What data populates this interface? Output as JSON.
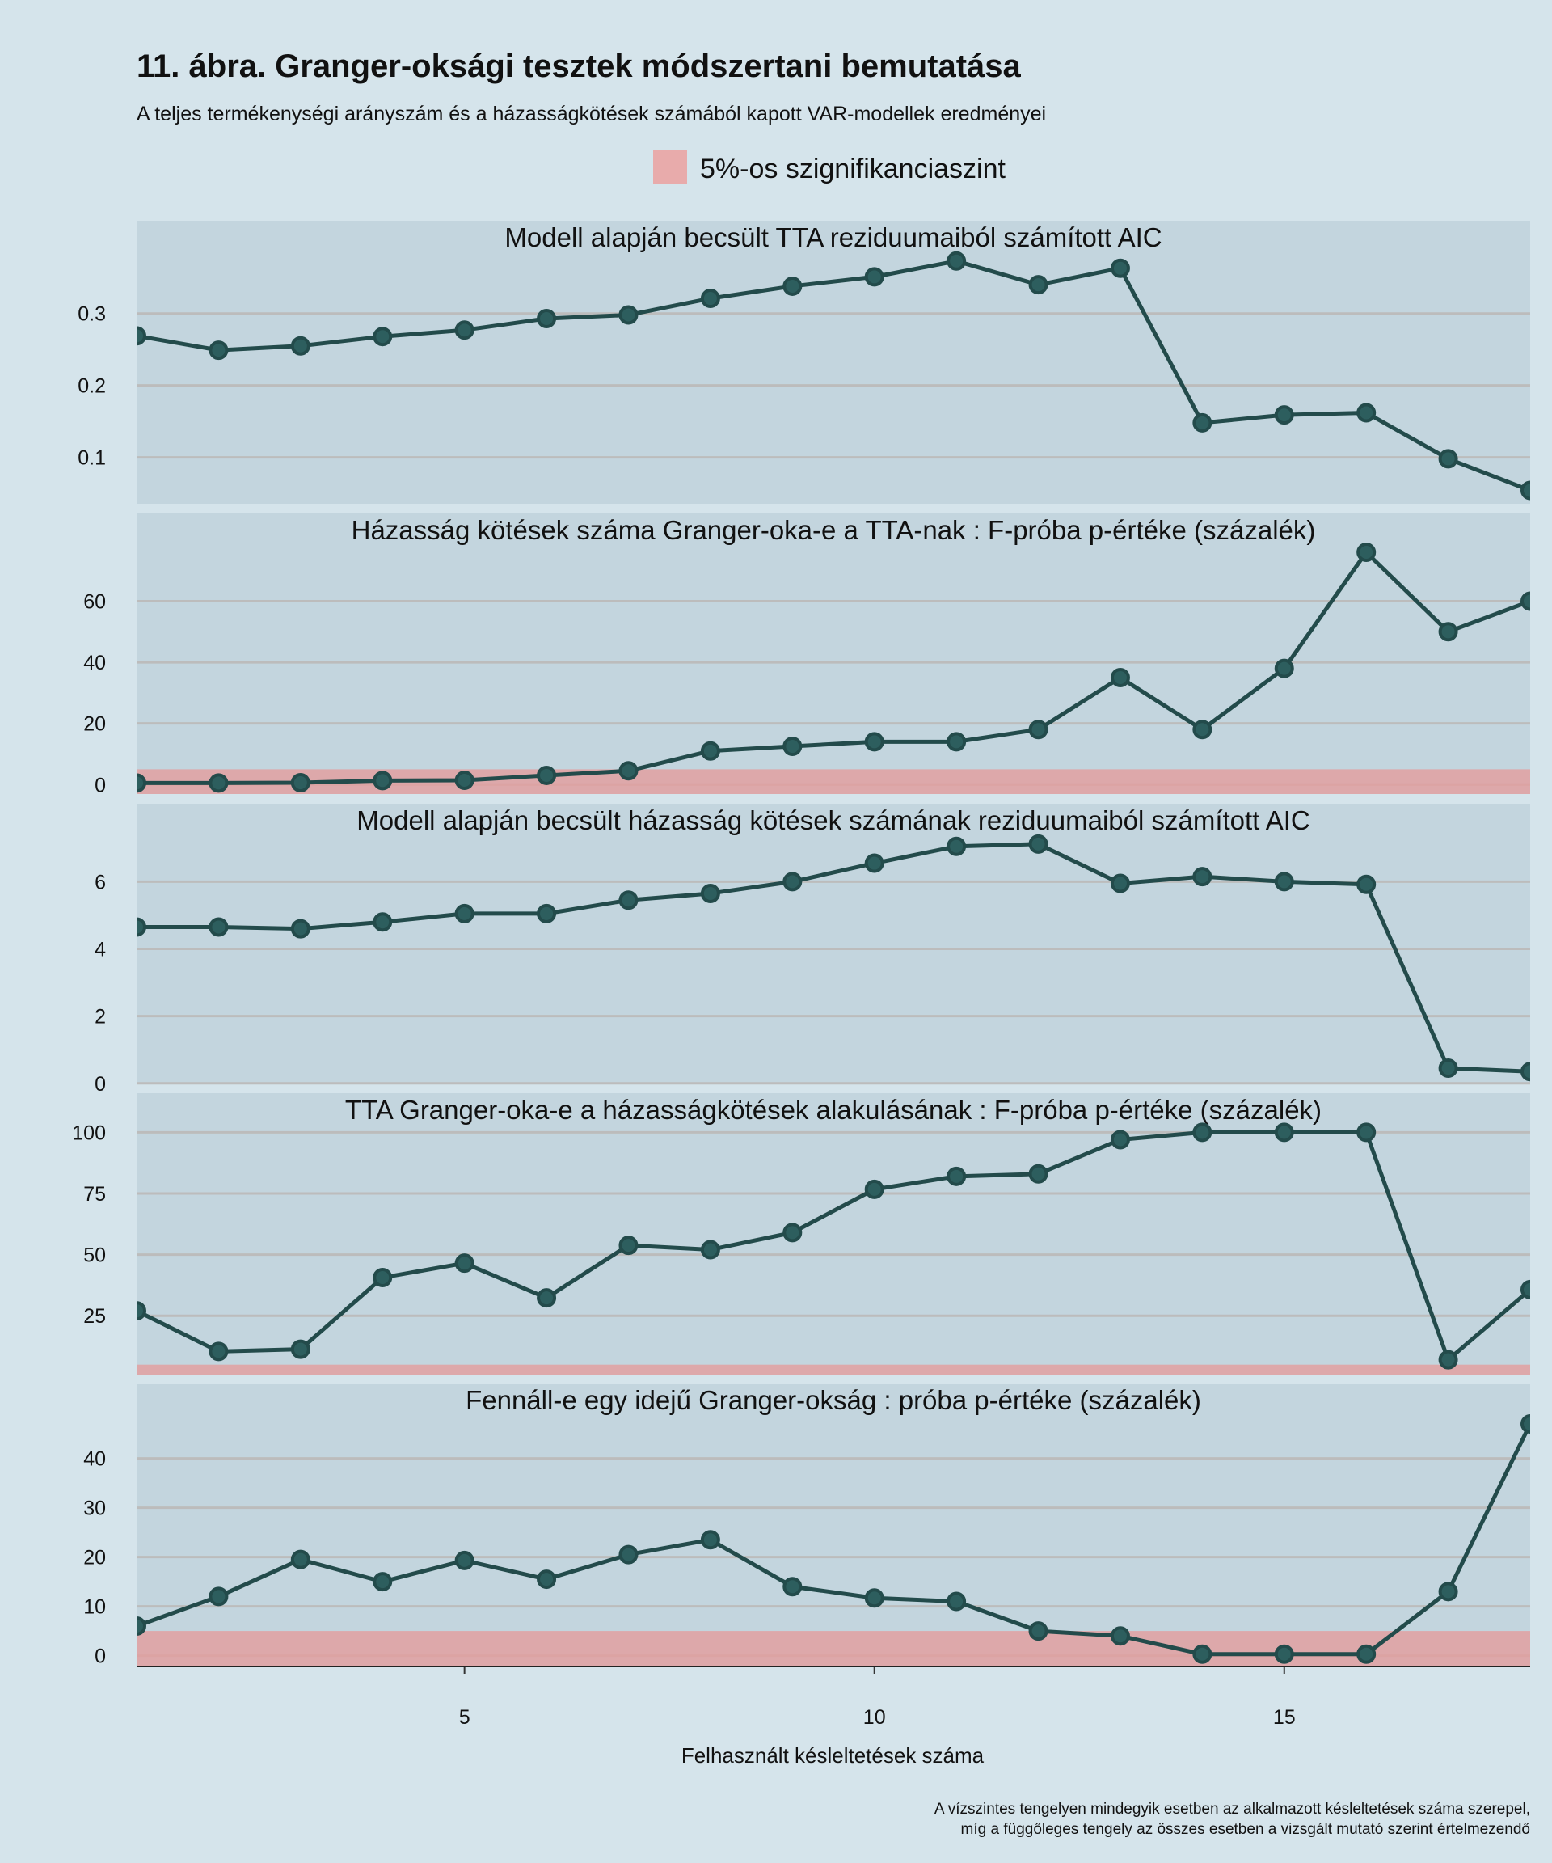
{
  "title": "11. ábra. Granger-oksági tesztek módszertani bemutatása",
  "subtitle": "A teljes termékenységi arányszám és a házasságkötések számából kapott VAR-modellek eredményei",
  "legend": {
    "label": "5%-os szignifikanciaszint",
    "color": "#e8abab"
  },
  "colors": {
    "background": "#d5e4eb",
    "panel": "#c3d5de",
    "grid": "#bcbcbc",
    "line": "#234b4b",
    "point": "#2d5e5e",
    "band": "#e39c9c"
  },
  "chart_data": {
    "type": "line",
    "layout": "faceted, 5 stacked panels sharing x axis",
    "x": [
      1,
      2,
      3,
      4,
      5,
      6,
      7,
      8,
      9,
      10,
      11,
      12,
      13,
      14,
      15,
      16,
      17,
      18
    ],
    "xlabel": "Felhasznált késleltetések száma",
    "xticks": [
      5,
      10,
      15
    ],
    "xlim": [
      1,
      18
    ],
    "grid": "horizontal major",
    "legend_placement": "top",
    "significance_level": 5,
    "panels": [
      {
        "title": "Modell alapján becsült TTA reziduumaiból számított AIC",
        "values": [
          0.269,
          0.249,
          0.255,
          0.268,
          0.277,
          0.293,
          0.298,
          0.321,
          0.338,
          0.351,
          0.373,
          0.34,
          0.363,
          0.148,
          0.159,
          0.162,
          0.098,
          0.054
        ],
        "yticks": [
          0.1,
          0.2,
          0.3
        ],
        "ytick_labels": [
          "0.1",
          "0.2",
          "0.3"
        ],
        "ylim": [
          0.0355,
          0.429
        ],
        "band": false
      },
      {
        "title": "Házasság kötések száma Granger-oka-e a TTA-nak : F-próba p-értéke (százalék)",
        "values": [
          0.5,
          0.5,
          0.6,
          1.3,
          1.4,
          3,
          4.5,
          11,
          12.5,
          14,
          14,
          18,
          35,
          18,
          38,
          76,
          50,
          60
        ],
        "yticks": [
          0,
          20,
          40,
          60
        ],
        "ytick_labels": [
          "0",
          "20",
          "40",
          "60"
        ],
        "ylim": [
          -3.1,
          88.7
        ],
        "band": true
      },
      {
        "title": "Modell alapján becsült házasság kötések számának reziduumaiból számított AIC",
        "values": [
          4.65,
          4.65,
          4.6,
          4.8,
          5.05,
          5.05,
          5.45,
          5.65,
          6.0,
          6.55,
          7.05,
          7.12,
          5.95,
          6.15,
          6.0,
          5.92,
          0.45,
          0.35
        ],
        "yticks": [
          0,
          2,
          4,
          6
        ],
        "ytick_labels": [
          "0",
          "2",
          "4",
          "6"
        ],
        "ylim": [
          -0.03,
          8.32
        ],
        "band": false
      },
      {
        "title": "TTA Granger-oka-e a házasságkötések alakulásának : F-próba p-értéke (százalék)",
        "values": [
          27,
          10.4,
          11.3,
          40.6,
          46.5,
          32.3,
          53.8,
          52,
          59,
          76.7,
          82,
          83,
          97,
          100,
          100,
          100,
          7,
          35.7
        ],
        "yticks": [
          25,
          50,
          75,
          100
        ],
        "ytick_labels": [
          "25",
          "50",
          "75",
          "100"
        ],
        "ylim": [
          0.6,
          116
        ],
        "band": true
      },
      {
        "title": "Fennáll-e egy idejű Granger-okság : próba p-értéke (százalék)",
        "values": [
          6,
          12,
          19.5,
          15,
          19.3,
          15.5,
          20.5,
          23.5,
          14,
          11.7,
          11,
          5,
          4,
          0.3,
          0.3,
          0.3,
          13,
          47
        ],
        "yticks": [
          0,
          10,
          20,
          30,
          40
        ],
        "ytick_labels": [
          "0",
          "10",
          "20",
          "30",
          "40"
        ],
        "ylim": [
          -2.2,
          55.2
        ],
        "band": true
      }
    ]
  },
  "footnote": {
    "line1": "A vízszintes tengelyen mindegyik esetben az alkalmazott késleltetések száma szerepel,",
    "line2": "míg a függőleges tengely az összes esetben a vizsgált mutató szerint értelmezendő"
  }
}
